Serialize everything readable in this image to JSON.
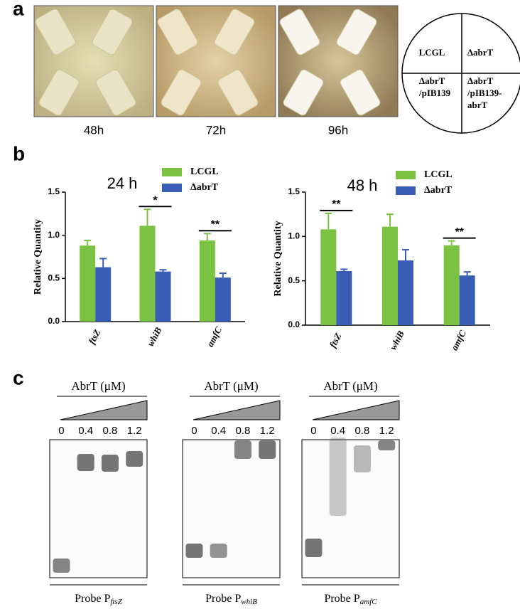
{
  "panel_labels": [
    "a",
    "b",
    "c"
  ],
  "panel_a": {
    "plates": [
      {
        "label": "48h"
      },
      {
        "label": "72h"
      },
      {
        "label": "96h"
      }
    ],
    "legend_quadrants": [
      [
        "LCGL"
      ],
      [
        "ΔabrT"
      ],
      [
        "ΔabrT",
        "/pIB139"
      ],
      [
        "ΔabrT",
        "/pIB139-",
        "abrT"
      ]
    ]
  },
  "chart_data": [
    {
      "type": "bar",
      "title": "24 h",
      "y_label": "Relative Quantity",
      "categories": [
        "ftsZ",
        "whiB",
        "amfC"
      ],
      "series": [
        {
          "name": "LCGL",
          "color": "#7cc242",
          "values": [
            0.88,
            1.11,
            0.94
          ],
          "errors": [
            0.06,
            0.19,
            0.08
          ]
        },
        {
          "name": "ΔabrT",
          "color": "#3a5eb6",
          "values": [
            0.63,
            0.58,
            0.51
          ],
          "errors": [
            0.1,
            0.02,
            0.05
          ]
        }
      ],
      "ylim": [
        0,
        1.5
      ],
      "yticks": [
        {
          "value": 0,
          "label": "0.0"
        },
        {
          "value": 0.5,
          "label": "0.5"
        },
        {
          "value": 1,
          "label": "1.0"
        },
        {
          "value": 1.5,
          "label": "1.5"
        }
      ],
      "annotations": [
        {
          "text": "*",
          "category": "whiB"
        },
        {
          "text": "**",
          "category": "amfC"
        }
      ]
    },
    {
      "type": "bar",
      "title": "48 h",
      "y_label": "Relative Quantity",
      "categories": [
        "ftsZ",
        "whiB",
        "amfC"
      ],
      "series": [
        {
          "name": "LCGL",
          "color": "#7cc242",
          "values": [
            1.08,
            1.11,
            0.9
          ],
          "errors": [
            0.18,
            0.14,
            0.05
          ]
        },
        {
          "name": "ΔabrT",
          "color": "#3a5eb6",
          "values": [
            0.61,
            0.73,
            0.56
          ],
          "errors": [
            0.02,
            0.12,
            0.04
          ]
        }
      ],
      "ylim": [
        0,
        1.5
      ],
      "yticks": [
        {
          "value": 0,
          "label": "0.0"
        },
        {
          "value": 0.5,
          "label": "0.5"
        },
        {
          "value": 1,
          "label": "1.0"
        },
        {
          "value": 1.5,
          "label": "1.5"
        }
      ],
      "annotations": [
        {
          "text": "**",
          "category": "ftsZ"
        },
        {
          "text": "**",
          "category": "amfC"
        }
      ]
    }
  ],
  "panel_c": {
    "gels": [
      {
        "title": "AbrT (μM)",
        "concentrations": [
          "0",
          "0.4",
          "0.8",
          "1.2"
        ],
        "probe": "Probe P",
        "probe_subscript": "ftsZ"
      },
      {
        "title": "AbrT (μM)",
        "concentrations": [
          "0",
          "0.4",
          "0.8",
          "1.2"
        ],
        "probe": "Probe P",
        "probe_subscript": "whiB"
      },
      {
        "title": "AbrT (μM)",
        "concentrations": [
          "0",
          "0.4",
          "0.8",
          "1.2"
        ],
        "probe": "Probe P",
        "probe_subscript": "amfC"
      }
    ]
  }
}
